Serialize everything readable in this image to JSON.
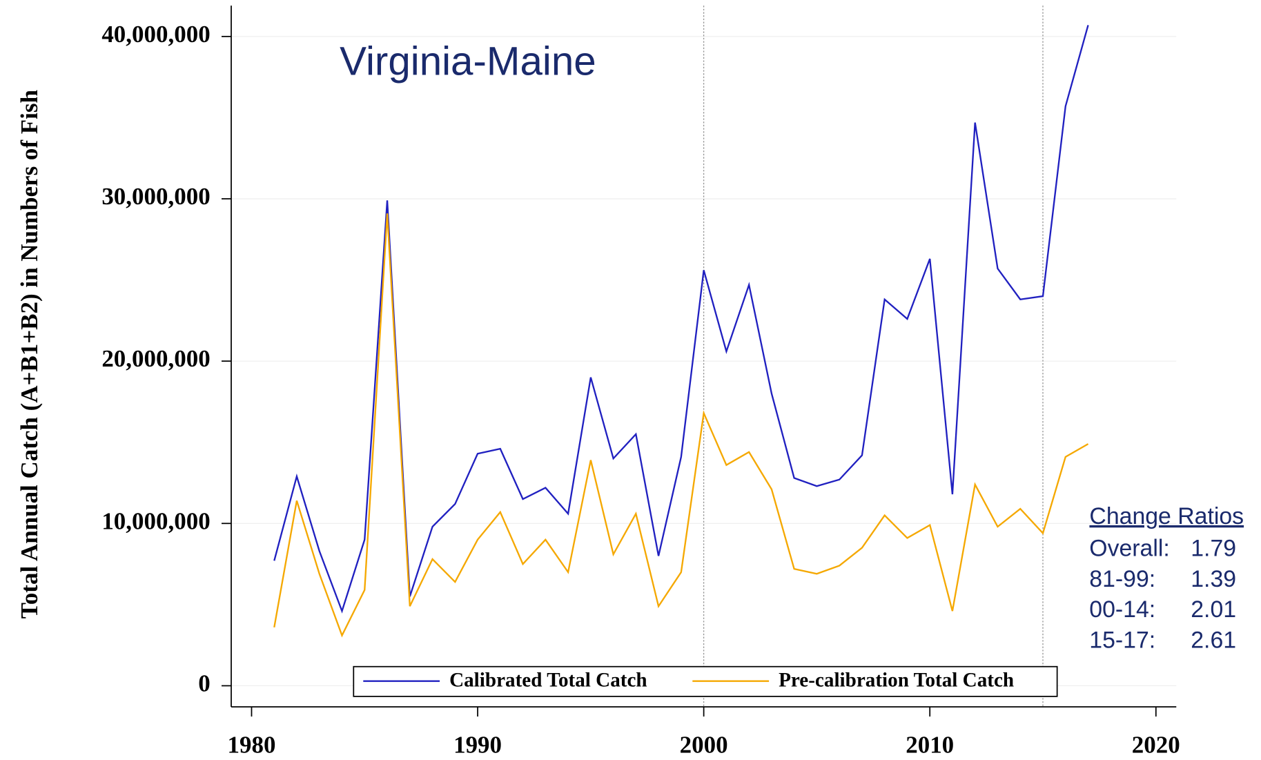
{
  "chart_data": {
    "type": "line",
    "title": "Virginia-Maine",
    "y_axis_label": "Total Annual Catch (A+B1+B2) in Numbers of Fish",
    "x": [
      1981,
      1982,
      1983,
      1984,
      1985,
      1986,
      1987,
      1988,
      1989,
      1990,
      1991,
      1992,
      1993,
      1994,
      1995,
      1996,
      1997,
      1998,
      1999,
      2000,
      2001,
      2002,
      2003,
      2004,
      2005,
      2006,
      2007,
      2008,
      2009,
      2010,
      2011,
      2012,
      2013,
      2014,
      2015,
      2016,
      2017
    ],
    "series": [
      {
        "name": "Calibrated Total Catch",
        "color": "#2020c0",
        "values": [
          7700000,
          12900000,
          8300000,
          4600000,
          9000000,
          29900000,
          5500000,
          9800000,
          11200000,
          14300000,
          14600000,
          11500000,
          12200000,
          10600000,
          19000000,
          14000000,
          15500000,
          8000000,
          14100000,
          25600000,
          20600000,
          24700000,
          18000000,
          12800000,
          12300000,
          12700000,
          14200000,
          23800000,
          22600000,
          26300000,
          11800000,
          34700000,
          25700000,
          23800000,
          24000000,
          35700000,
          40700000
        ]
      },
      {
        "name": "Pre-calibration Total Catch",
        "color": "#f5a800",
        "values": [
          3600000,
          11400000,
          6900000,
          3100000,
          5900000,
          29100000,
          4900000,
          7800000,
          6400000,
          9000000,
          10700000,
          7500000,
          9000000,
          7000000,
          13900000,
          8100000,
          10600000,
          4900000,
          7000000,
          16800000,
          13600000,
          14400000,
          12100000,
          7200000,
          6900000,
          7400000,
          8500000,
          10500000,
          9100000,
          9900000,
          4600000,
          12400000,
          9800000,
          10900000,
          9400000,
          14100000,
          14900000
        ]
      }
    ],
    "xlim": [
      1979.1,
      2020.9
    ],
    "xticks": [
      1980,
      1990,
      2000,
      2010,
      2020
    ],
    "ylim": [
      -1300000,
      41900000
    ],
    "yticks": [
      0,
      {
        "value": 10000000,
        "label": "10,000,000"
      },
      {
        "value": 20000000,
        "label": "20,000,000"
      },
      {
        "value": 30000000,
        "label": "30,000,000"
      },
      {
        "value": 40000000,
        "label": "40,000,000"
      }
    ],
    "grid": true,
    "vlines": [
      2000,
      2015
    ],
    "legend": "bottom",
    "change_ratios": {
      "title": "Change Ratios",
      "rows": [
        {
          "label": "Overall:",
          "value": 1.79
        },
        {
          "label": "81-99:",
          "value": 1.39
        },
        {
          "label": "00-14:",
          "value": 2.01
        },
        {
          "label": "15-17:",
          "value": 2.61
        }
      ]
    }
  }
}
